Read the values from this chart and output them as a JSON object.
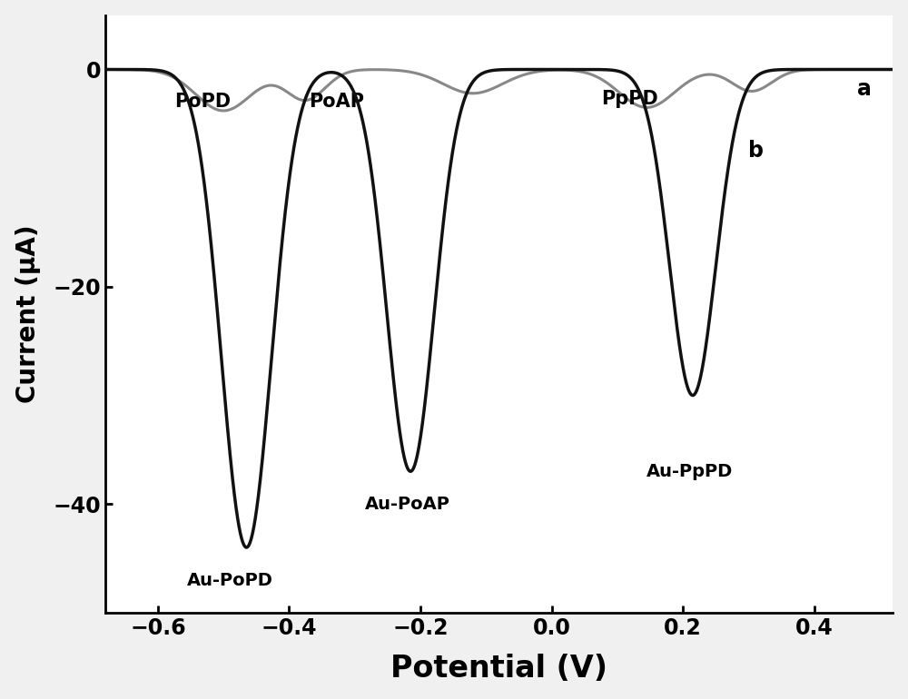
{
  "xlabel": "Potential (V)",
  "ylabel": "Current (μA)",
  "xlim": [
    -0.68,
    0.52
  ],
  "ylim": [
    -50,
    5
  ],
  "yticks": [
    0,
    -20,
    -40
  ],
  "xticks": [
    -0.6,
    -0.4,
    -0.2,
    0.0,
    0.2,
    0.4
  ],
  "curve_a_color": "#888888",
  "curve_b_color": "#111111",
  "background_color": "#ffffff",
  "fig_background": "#f0f0f0"
}
